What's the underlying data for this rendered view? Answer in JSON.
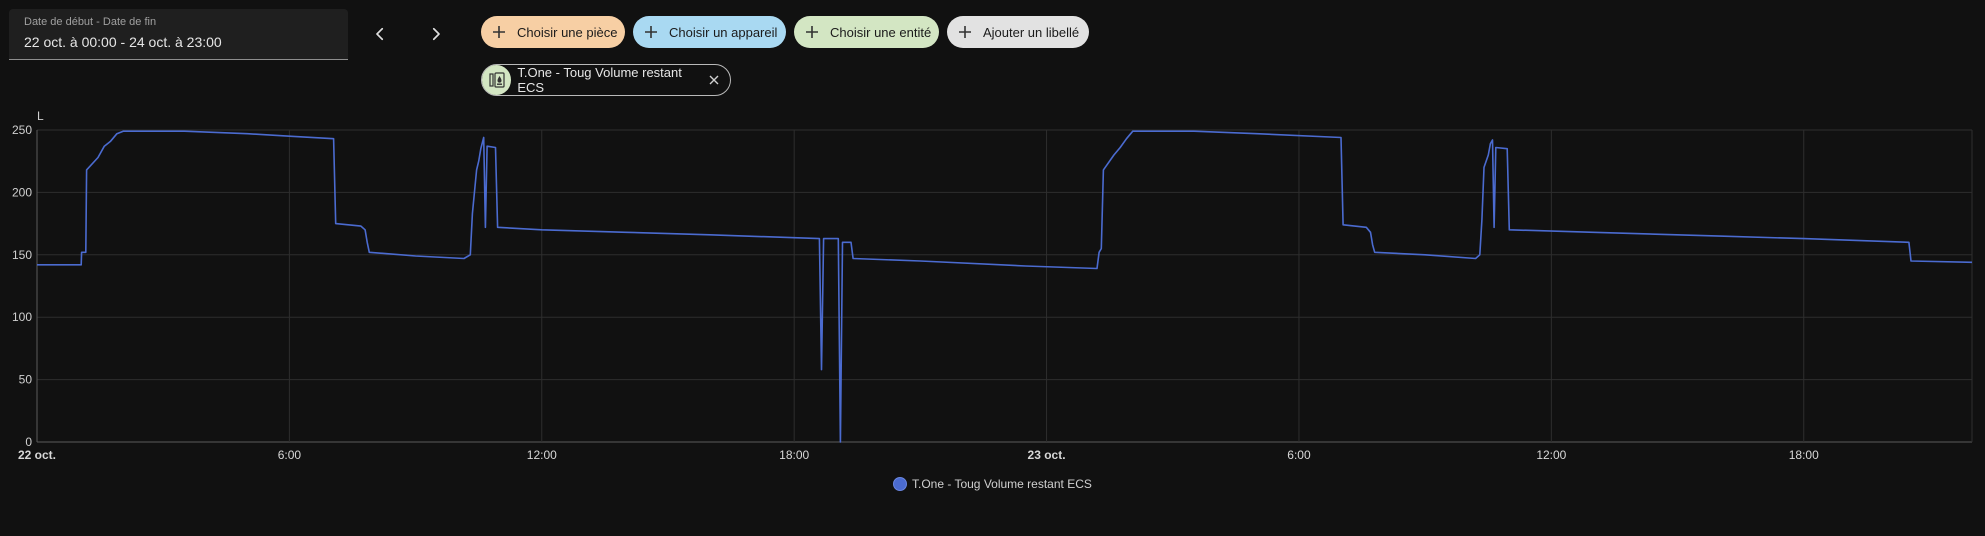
{
  "date_range": {
    "label": "Date de début - Date de fin",
    "value": "22 oct. à 00:00 - 24 oct. à 23:00"
  },
  "nav": {
    "prev_icon": "chevron-left-icon",
    "next_icon": "chevron-right-icon"
  },
  "chips": [
    {
      "label": "Choisir une pièce",
      "color": "#f7cfa4",
      "icon": "plus-icon"
    },
    {
      "label": "Choisir un appareil",
      "color": "#a9d9f2",
      "icon": "plus-icon"
    },
    {
      "label": "Choisir une entité",
      "color": "#d3e6c3",
      "icon": "plus-icon"
    },
    {
      "label": "Ajouter un libellé",
      "color": "#e2e2e2",
      "icon": "plus-icon"
    }
  ],
  "selected_entity": {
    "label": "T.One - Toug Volume restant ECS",
    "icon": "water-heater-icon",
    "close_icon": "close-icon"
  },
  "chart_data": {
    "type": "line",
    "ylabel": "L",
    "ylim": [
      0,
      250
    ],
    "yticks": [
      0,
      50,
      100,
      150,
      200,
      250
    ],
    "xlim_hours": [
      0,
      46
    ],
    "xticks": [
      {
        "hour": 0,
        "label": "22 oct.",
        "bold": true
      },
      {
        "hour": 6,
        "label": "6:00",
        "bold": false
      },
      {
        "hour": 12,
        "label": "12:00",
        "bold": false
      },
      {
        "hour": 18,
        "label": "18:00",
        "bold": false
      },
      {
        "hour": 24,
        "label": "23 oct.",
        "bold": true
      },
      {
        "hour": 30,
        "label": "6:00",
        "bold": false
      },
      {
        "hour": 36,
        "label": "12:00",
        "bold": false
      },
      {
        "hour": 42,
        "label": "18:00",
        "bold": false
      }
    ],
    "grid": true,
    "series": [
      {
        "name": "T.One - Toug Volume restant ECS",
        "color": "#4b6bd0",
        "points": [
          [
            0,
            142
          ],
          [
            1.05,
            142
          ],
          [
            1.06,
            152
          ],
          [
            1.16,
            152
          ],
          [
            1.18,
            218
          ],
          [
            1.45,
            228
          ],
          [
            1.6,
            237
          ],
          [
            1.75,
            241
          ],
          [
            1.9,
            247
          ],
          [
            2.05,
            249
          ],
          [
            3.5,
            249
          ],
          [
            5.0,
            247
          ],
          [
            6.0,
            245
          ],
          [
            7.05,
            243
          ],
          [
            7.1,
            175
          ],
          [
            7.7,
            173
          ],
          [
            7.8,
            170
          ],
          [
            7.85,
            160
          ],
          [
            7.9,
            152
          ],
          [
            9.0,
            149
          ],
          [
            10.15,
            147
          ],
          [
            10.3,
            150
          ],
          [
            10.35,
            183
          ],
          [
            10.45,
            218
          ],
          [
            10.5,
            225
          ],
          [
            10.55,
            235
          ],
          [
            10.62,
            244
          ],
          [
            10.66,
            172
          ],
          [
            10.7,
            237
          ],
          [
            10.9,
            236
          ],
          [
            10.95,
            172
          ],
          [
            12.0,
            170
          ],
          [
            14.0,
            168
          ],
          [
            16.0,
            166
          ],
          [
            18.6,
            163
          ],
          [
            18.65,
            58
          ],
          [
            18.7,
            163
          ],
          [
            19.05,
            163
          ],
          [
            19.1,
            0
          ],
          [
            19.15,
            160
          ],
          [
            19.35,
            160
          ],
          [
            19.4,
            147
          ],
          [
            21.0,
            145
          ],
          [
            23.5,
            141
          ],
          [
            25.2,
            139
          ],
          [
            25.25,
            152
          ],
          [
            25.3,
            155
          ],
          [
            25.35,
            218
          ],
          [
            25.6,
            230
          ],
          [
            25.75,
            236
          ],
          [
            25.9,
            243
          ],
          [
            26.05,
            249
          ],
          [
            27.5,
            249
          ],
          [
            29.0,
            247
          ],
          [
            31.0,
            244
          ],
          [
            31.05,
            174
          ],
          [
            31.6,
            172
          ],
          [
            31.7,
            168
          ],
          [
            31.75,
            158
          ],
          [
            31.8,
            152
          ],
          [
            33.0,
            150
          ],
          [
            34.2,
            147
          ],
          [
            34.3,
            150
          ],
          [
            34.35,
            178
          ],
          [
            34.4,
            220
          ],
          [
            34.5,
            230
          ],
          [
            34.55,
            239
          ],
          [
            34.6,
            242
          ],
          [
            34.64,
            172
          ],
          [
            34.68,
            236
          ],
          [
            34.95,
            235
          ],
          [
            35.0,
            170
          ],
          [
            37.0,
            168
          ],
          [
            40.0,
            165
          ],
          [
            42.0,
            163
          ],
          [
            44.5,
            160
          ],
          [
            44.55,
            145
          ],
          [
            46.0,
            144
          ]
        ]
      }
    ]
  },
  "legend": {
    "label": "T.One - Toug Volume restant ECS"
  }
}
